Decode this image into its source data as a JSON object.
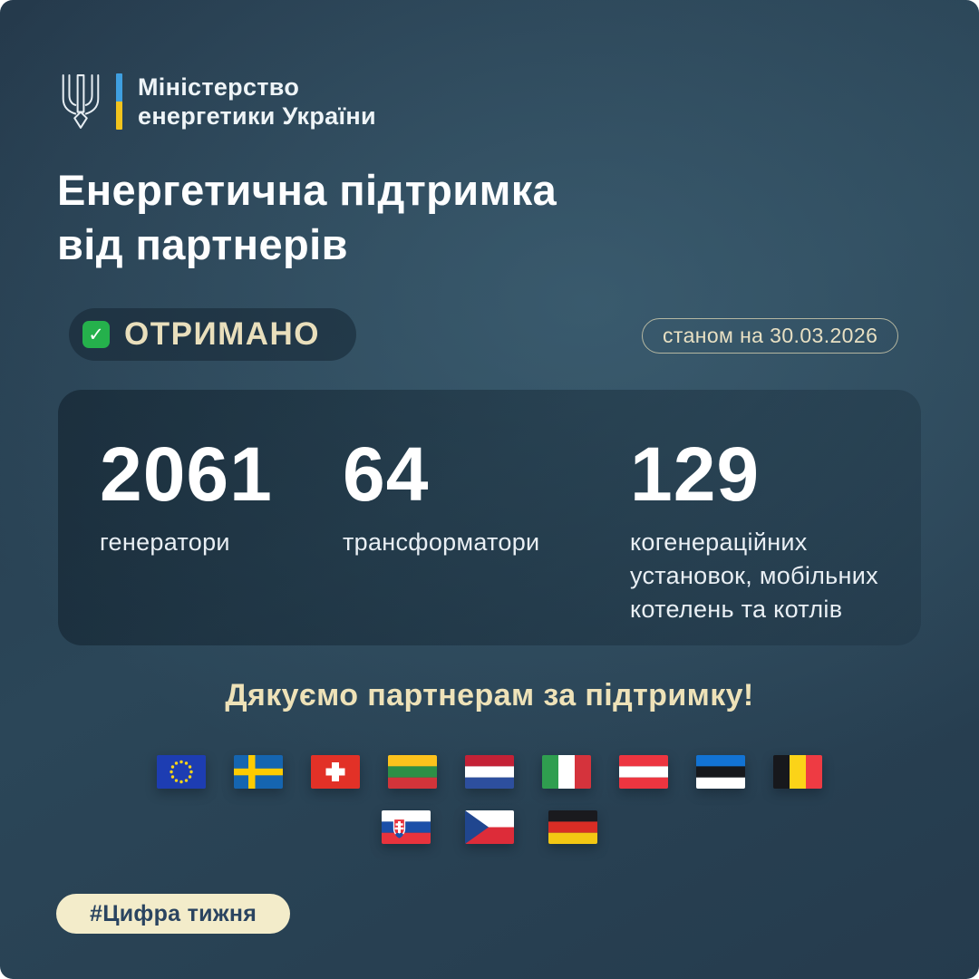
{
  "header": {
    "logo_icon": "ukraine-trident-icon",
    "ministry_line1": "Міністерство",
    "ministry_line2": "енергетики України",
    "divider_blue": "#3f9fe0",
    "divider_yellow": "#f2c41d"
  },
  "title": {
    "line1": "Енергетична підтримка",
    "line2": "від партнерів"
  },
  "status": {
    "received_label": "ОТРИМАНО",
    "date_label": "станом на 30.03.2026"
  },
  "stats": [
    {
      "value": "2061",
      "label": "генератори"
    },
    {
      "value": "64",
      "label": "трансформатори"
    },
    {
      "value": "129",
      "label": "когенераційних установок, мобільних котелень та котлів"
    }
  ],
  "thanks": "Дякуємо партнерам за підтримку!",
  "flags": {
    "row1": [
      "european-union",
      "sweden",
      "switzerland",
      "lithuania",
      "netherlands",
      "italy",
      "austria",
      "estonia",
      "belgium"
    ],
    "row2": [
      "slovakia",
      "czech-republic",
      "germany"
    ]
  },
  "hashtag": "#Цифра тижня",
  "icons": {
    "check": "✓"
  },
  "colors": {
    "cream": "#e9dfbc",
    "check_green": "#25b14c",
    "hashtag_bg": "#f3ecca",
    "hashtag_text": "#2a4460"
  }
}
